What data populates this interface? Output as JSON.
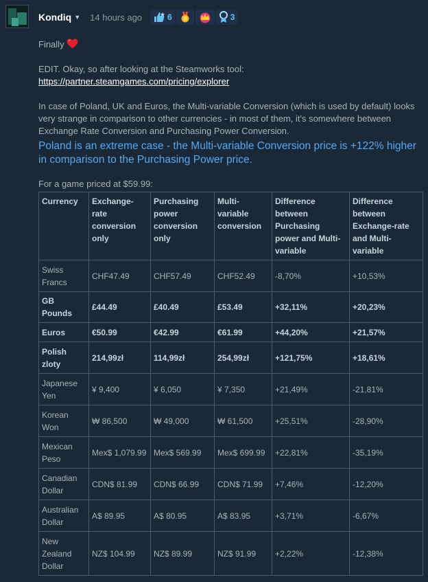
{
  "post": {
    "author": "Kondiq",
    "time": "14 hours ago",
    "awards": [
      {
        "icon": "thumbs-up-award-icon",
        "count": "6"
      },
      {
        "icon": "gold-medal-award-icon",
        "count": ""
      },
      {
        "icon": "crown-award-icon",
        "count": ""
      },
      {
        "icon": "ribbon-award-icon",
        "count": "3"
      }
    ]
  },
  "content": {
    "line1": "Finally",
    "edit": "EDIT. Okay, so after looking at the Steamworks tool:",
    "link": "https://partner.steamgames.com/pricing/explorer",
    "para": "In case of Poland, UK and Euros, the Multi-variable Conversion (which is used by default) looks very strange in comparison to other currencies - in most of them, it's somewhere between Exchange Rate Conversion and Purchasing Power Conversion.",
    "highlight": "Poland is an extreme case - the Multi-variable Conversion price is +122% higher in comparison to the Purchasing Power price.",
    "table_caption": "For a game priced at $59.99:"
  },
  "table": {
    "headers": [
      "Currency",
      "Exchange-rate conversion only",
      "Purchasing power conversion only",
      "Multi-variable conversion",
      "Difference between Purchasing power and Multi-variable",
      "Difference between Exchange-rate and Multi-variable"
    ],
    "rows": [
      {
        "bold": false,
        "cells": [
          "Swiss Francs",
          "CHF47.49",
          "CHF57.49",
          "CHF52.49",
          "-8,70%",
          "+10,53%"
        ]
      },
      {
        "bold": true,
        "cells": [
          "GB Pounds",
          "£44.49",
          "£40.49",
          "£53.49",
          "+32,11%",
          "+20,23%"
        ]
      },
      {
        "bold": true,
        "cells": [
          "Euros",
          "€50.99",
          "€42.99",
          "€61.99",
          "+44,20%",
          "+21,57%"
        ]
      },
      {
        "bold": true,
        "cells": [
          "Polish zloty",
          "214,99zł",
          "114,99zł",
          "254,99zł",
          "+121,75%",
          "+18,61%"
        ]
      },
      {
        "bold": false,
        "cells": [
          "Japanese Yen",
          "¥ 9,400",
          "¥ 6,050",
          "¥ 7,350",
          "+21,49%",
          "-21,81%"
        ]
      },
      {
        "bold": false,
        "cells": [
          "Korean Won",
          "₩ 86,500",
          "₩ 49,000",
          "₩ 61,500",
          "+25,51%",
          "-28,90%"
        ]
      },
      {
        "bold": false,
        "cells": [
          "Mexican Peso",
          "Mex$ 1,079.99",
          "Mex$ 569.99",
          "Mex$ 699.99",
          "+22,81%",
          "-35,19%"
        ]
      },
      {
        "bold": false,
        "cells": [
          "Canadian Dollar",
          "CDN$ 81.99",
          "CDN$ 66.99",
          "CDN$ 71.99",
          "+7,46%",
          "-12,20%"
        ]
      },
      {
        "bold": false,
        "cells": [
          "Australian Dollar",
          "A$ 89.95",
          "A$ 80.95",
          "A$ 83.95",
          "+3,71%",
          "-6,67%"
        ]
      },
      {
        "bold": false,
        "cells": [
          "New Zealand Dollar",
          "NZ$ 104.99",
          "NZ$ 89.99",
          "NZ$ 91.99",
          "+2,22%",
          "-12,38%"
        ]
      }
    ]
  },
  "colors": {
    "background": "#1b2838",
    "highlight_text": "#57a8f0",
    "award_count": "#66c0f4"
  }
}
